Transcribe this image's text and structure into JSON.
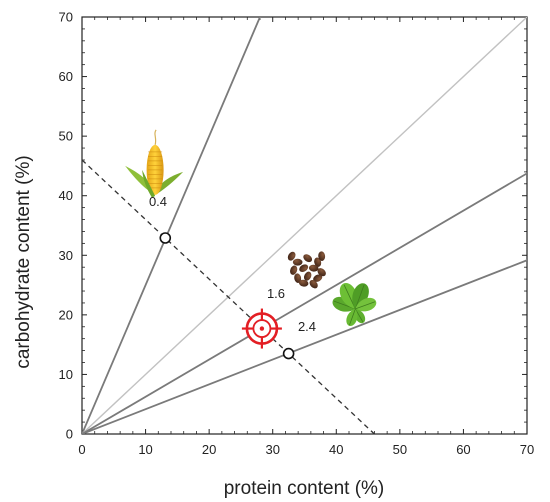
{
  "chart_data": {
    "type": "line",
    "title": "",
    "xlabel": "protein content (%)",
    "ylabel": "carbohydrate content (%)",
    "xlim": [
      0,
      70
    ],
    "ylim": [
      0,
      70
    ],
    "xticks": [
      0,
      10,
      20,
      30,
      40,
      50,
      60,
      70
    ],
    "yticks": [
      0,
      10,
      20,
      30,
      40,
      50,
      60,
      70
    ],
    "grid": false,
    "legend": "none",
    "ratio_lines": [
      {
        "ratio": 0.4,
        "label": "0.4",
        "style": "solid-dark"
      },
      {
        "ratio": 1.0,
        "label": "",
        "style": "solid-light"
      },
      {
        "ratio": 1.6,
        "label": "1.6",
        "style": "solid-dark"
      },
      {
        "ratio": 2.4,
        "label": "2.4",
        "style": "solid-dark"
      }
    ],
    "mixing_line": {
      "x": [
        0,
        46
      ],
      "y": [
        46,
        0
      ],
      "style": "dashed"
    },
    "intersection_points": [
      {
        "x": 13.1,
        "y": 32.9,
        "ratio": "0.4"
      },
      {
        "x": 28.3,
        "y": 17.7,
        "ratio": "1.6"
      },
      {
        "x": 32.5,
        "y": 13.5,
        "ratio": "2.4"
      }
    ],
    "target": {
      "x": 28.3,
      "y": 17.7
    },
    "food_icons": [
      {
        "name": "corn",
        "x": 11.5,
        "y": 44
      },
      {
        "name": "seeds",
        "x": 35.5,
        "y": 27.5
      },
      {
        "name": "leaves",
        "x": 43,
        "y": 21
      }
    ],
    "colors": {
      "dark_line": "#7a7a7a",
      "light_line": "#c2c2c2",
      "target": "#e31e24",
      "axis": "#222222"
    }
  }
}
